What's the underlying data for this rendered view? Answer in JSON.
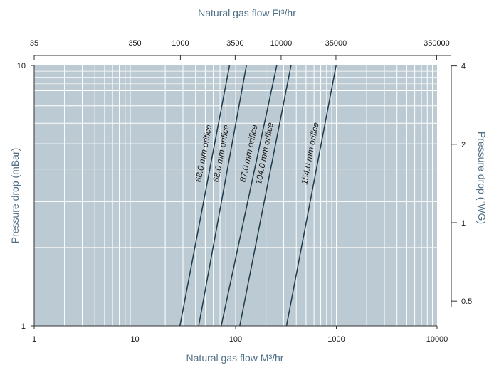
{
  "chart_data": {
    "type": "line",
    "title": "",
    "xlabel_bottom": "Natural gas flow M³/hr",
    "xlabel_top": "Natural gas flow Ft³/hr",
    "ylabel_left": "Pressure drop (mBar)",
    "ylabel_right": "Pressure drop (\"WG)",
    "x_scale": "log",
    "y_scale": "log",
    "xlim": [
      1,
      10000
    ],
    "ylim": [
      1,
      10
    ],
    "grid": true,
    "plot_bg": "#bccbd3",
    "grid_color": "#ffffff",
    "line_color": "#1f3a4a",
    "bottom_ticks": [
      "1",
      "10",
      "100",
      "1000",
      "10000"
    ],
    "left_ticks": [
      "1",
      "10"
    ],
    "top_ticks": [
      {
        "label": "35",
        "value_m3": 1
      },
      {
        "label": "350",
        "value_m3": 10
      },
      {
        "label": "1000",
        "value_m3": 28.3
      },
      {
        "label": "3500",
        "value_m3": 99
      },
      {
        "label": "10000",
        "value_m3": 283
      },
      {
        "label": "35000",
        "value_m3": 991
      },
      {
        "label": "350000",
        "value_m3": 9911
      }
    ],
    "right_ticks": [
      {
        "label": "0.5",
        "value_mbar": 1.245
      },
      {
        "label": "1",
        "value_mbar": 2.49
      },
      {
        "label": "2",
        "value_mbar": 4.98
      },
      {
        "label": "4",
        "value_mbar": 9.96
      }
    ],
    "series": [
      {
        "name": "68.0 mm orifice",
        "x": [
          28,
          87
        ],
        "y": [
          1,
          10
        ]
      },
      {
        "name": "68.0 mm orifice",
        "x": [
          43,
          128
        ],
        "y": [
          1,
          10
        ]
      },
      {
        "name": "87.0 mm orifice",
        "x": [
          72,
          256
        ],
        "y": [
          1,
          10
        ]
      },
      {
        "name": "104.0 mm orifice",
        "x": [
          110,
          355
        ],
        "y": [
          1,
          10
        ]
      },
      {
        "name": "154.0 mm orifice",
        "x": [
          320,
          995
        ],
        "y": [
          1,
          10
        ]
      }
    ]
  }
}
